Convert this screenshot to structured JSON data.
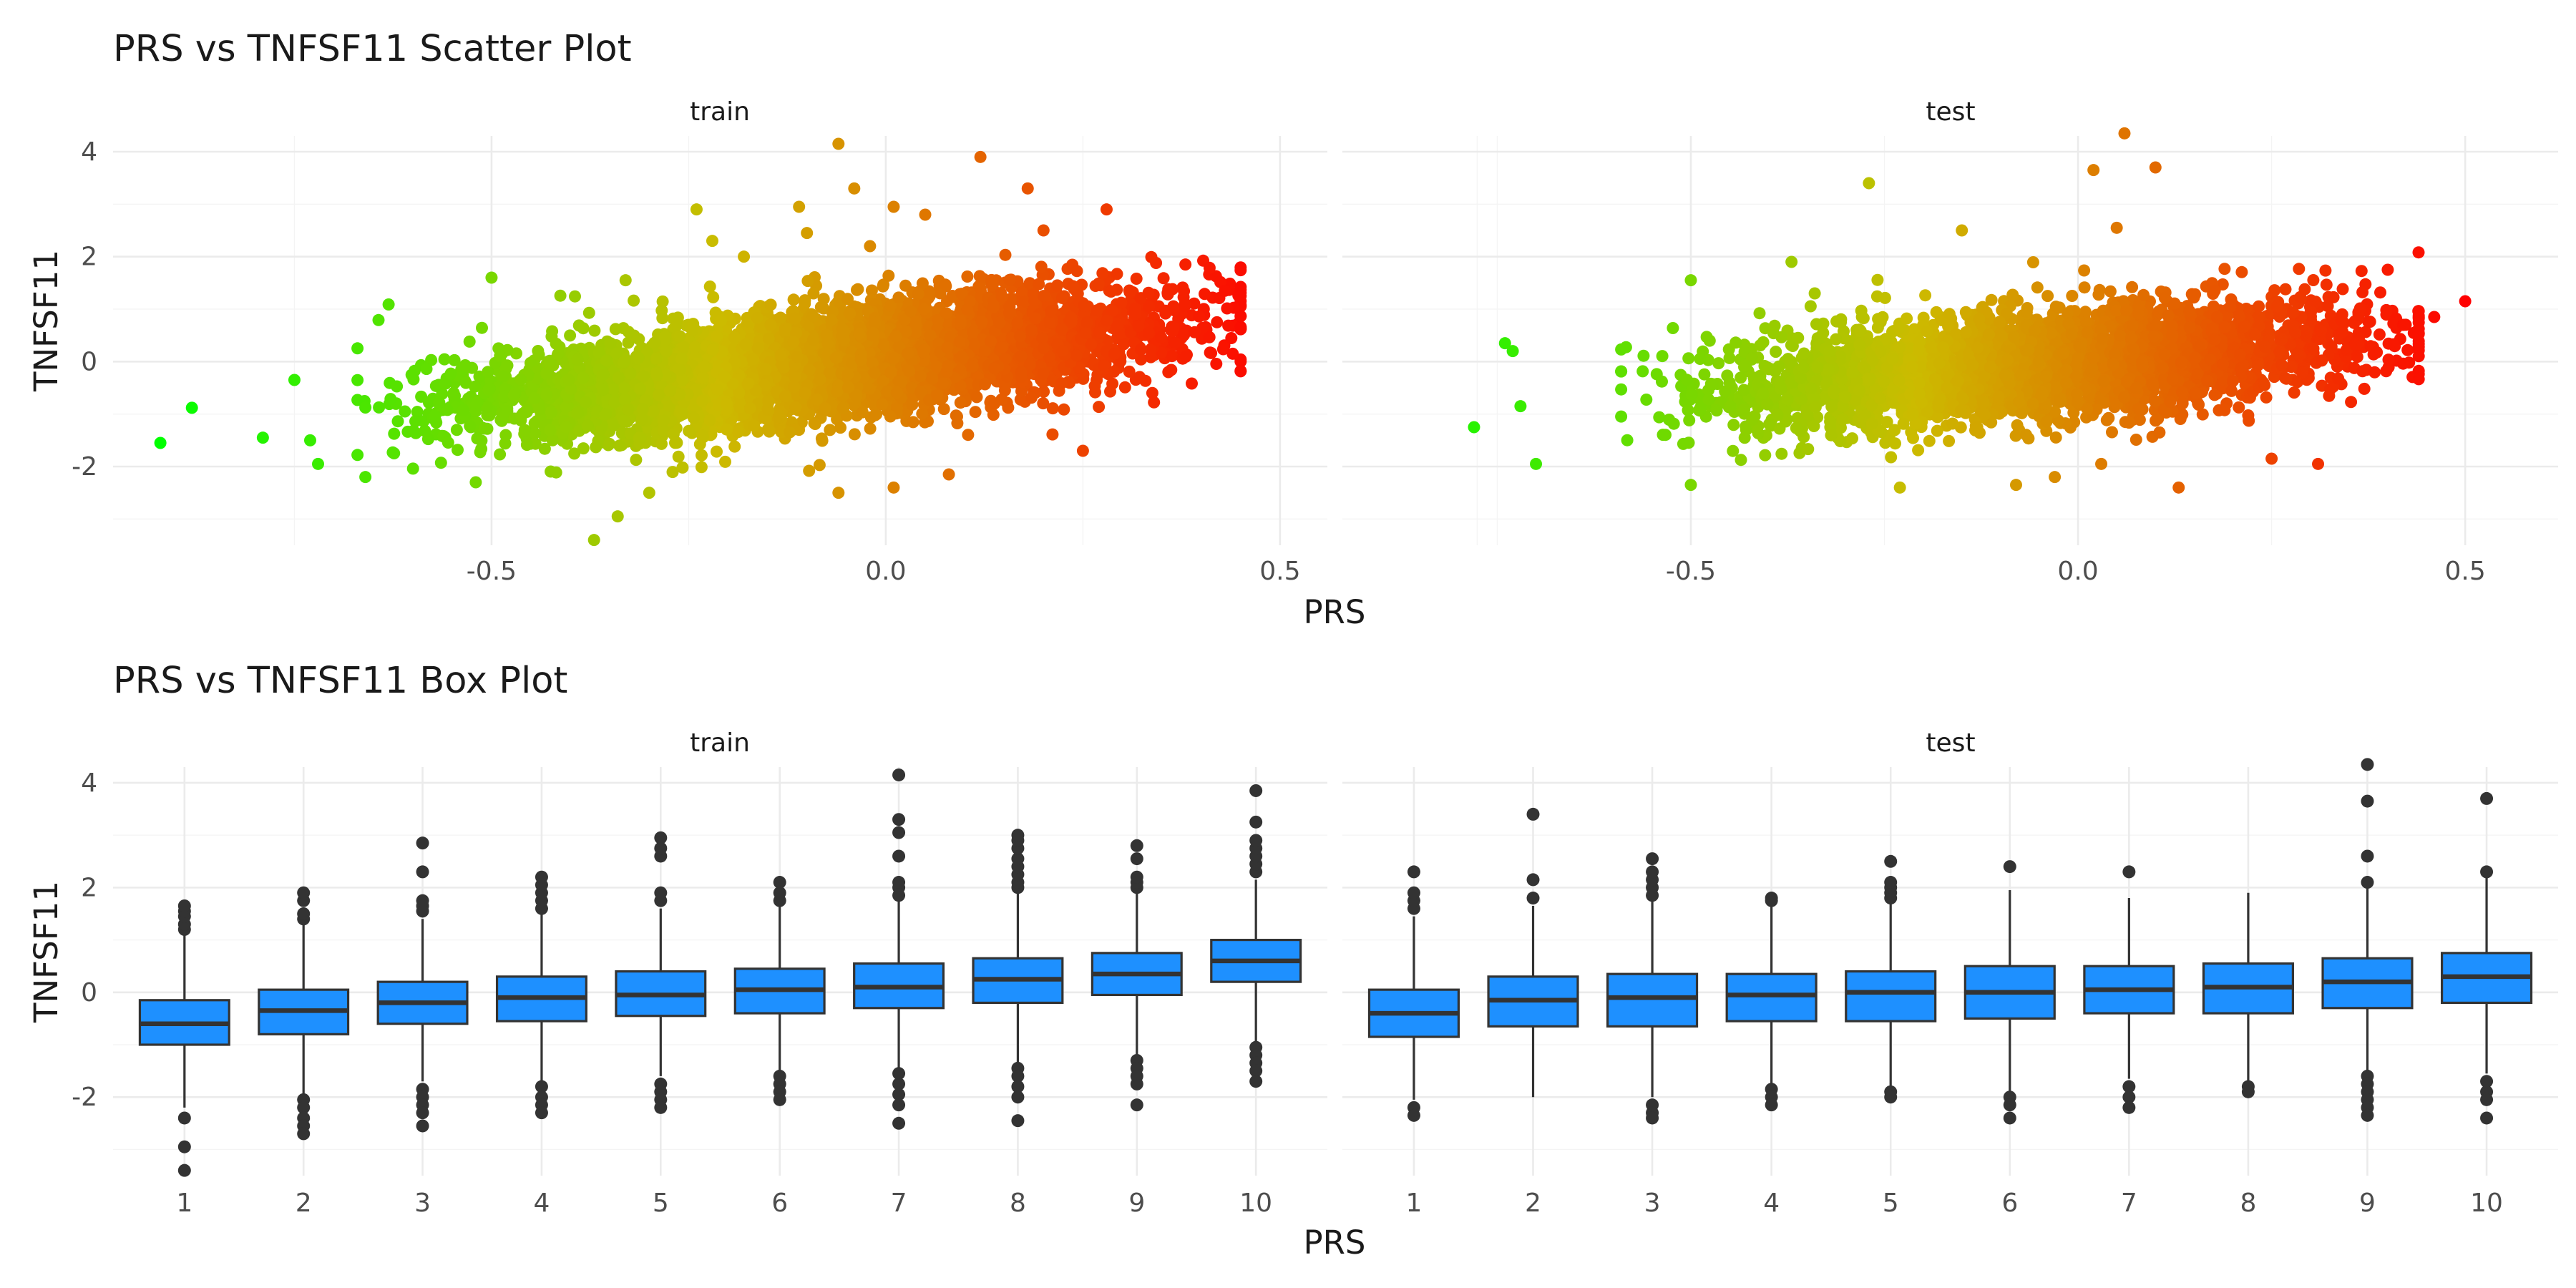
{
  "chart_data": [
    {
      "type": "scatter",
      "title": "PRS vs TNFSF11 Scatter Plot",
      "xlabel": "PRS",
      "ylabel": "TNFSF11",
      "color_scale": {
        "low": "#00FF00",
        "mid": "#CCBB00",
        "high": "#FF0000",
        "mapped_to": "PRS"
      },
      "panels": [
        {
          "name": "train",
          "xlim": [
            -0.98,
            0.56
          ],
          "ylim": [
            -3.5,
            4.3
          ],
          "xticks": [
            "-0.5",
            "0.0",
            "0.5"
          ],
          "yticks": [
            "-2",
            "0",
            "2",
            "4"
          ],
          "core": [
            {
              "x": -0.55,
              "y": -0.85
            },
            {
              "x": -0.4,
              "y": -0.6
            },
            {
              "x": -0.25,
              "y": -0.35
            },
            {
              "x": -0.1,
              "y": -0.05
            },
            {
              "x": 0.05,
              "y": 0.2
            },
            {
              "x": 0.2,
              "y": 0.45
            },
            {
              "x": 0.33,
              "y": 0.7
            }
          ],
          "points": [
            {
              "x": -0.92,
              "y": -1.55
            },
            {
              "x": -0.88,
              "y": -0.88
            },
            {
              "x": -0.79,
              "y": -1.45
            },
            {
              "x": -0.75,
              "y": -0.35
            },
            {
              "x": -0.73,
              "y": -1.5
            },
            {
              "x": -0.72,
              "y": -1.95
            },
            {
              "x": -0.66,
              "y": -2.2
            },
            {
              "x": -0.52,
              "y": -2.3
            },
            {
              "x": -0.5,
              "y": 1.6
            },
            {
              "x": -0.37,
              "y": -3.4
            },
            {
              "x": -0.34,
              "y": -2.95
            },
            {
              "x": -0.33,
              "y": 1.55
            },
            {
              "x": -0.3,
              "y": -2.5
            },
            {
              "x": -0.24,
              "y": 2.9
            },
            {
              "x": -0.22,
              "y": 2.3
            },
            {
              "x": -0.18,
              "y": 2.0
            },
            {
              "x": -0.11,
              "y": 2.95
            },
            {
              "x": -0.1,
              "y": 2.45
            },
            {
              "x": -0.06,
              "y": 4.15
            },
            {
              "x": -0.06,
              "y": -2.5
            },
            {
              "x": -0.04,
              "y": 3.3
            },
            {
              "x": -0.02,
              "y": 2.2
            },
            {
              "x": 0.01,
              "y": 2.95
            },
            {
              "x": 0.01,
              "y": -2.4
            },
            {
              "x": 0.05,
              "y": 2.8
            },
            {
              "x": 0.08,
              "y": -2.15
            },
            {
              "x": 0.12,
              "y": 3.9
            },
            {
              "x": 0.18,
              "y": 3.3
            },
            {
              "x": 0.2,
              "y": 2.5
            },
            {
              "x": 0.25,
              "y": -1.7
            },
            {
              "x": 0.28,
              "y": 2.9
            },
            {
              "x": 0.38,
              "y": 1.85
            },
            {
              "x": 0.42,
              "y": 0.75
            },
            {
              "x": 0.43,
              "y": 1.35
            },
            {
              "x": 0.44,
              "y": 0.15
            },
            {
              "x": 0.45,
              "y": 1.25
            }
          ]
        },
        {
          "name": "test",
          "xlim": [
            -0.95,
            0.62
          ],
          "ylim": [
            -3.5,
            4.3
          ],
          "xticks": [
            "-0.5",
            "0.0",
            "0.5"
          ],
          "yticks": [
            "-2",
            "0",
            "2",
            "4"
          ],
          "core": [
            {
              "x": -0.47,
              "y": -0.55
            },
            {
              "x": -0.33,
              "y": -0.4
            },
            {
              "x": -0.2,
              "y": -0.25
            },
            {
              "x": -0.05,
              "y": -0.05
            },
            {
              "x": 0.1,
              "y": 0.1
            },
            {
              "x": 0.23,
              "y": 0.3
            },
            {
              "x": 0.32,
              "y": 0.45
            }
          ],
          "points": [
            {
              "x": -0.78,
              "y": -1.25
            },
            {
              "x": -0.74,
              "y": 0.35
            },
            {
              "x": -0.73,
              "y": 0.2
            },
            {
              "x": -0.72,
              "y": -0.85
            },
            {
              "x": -0.7,
              "y": -1.95
            },
            {
              "x": -0.5,
              "y": 1.55
            },
            {
              "x": -0.5,
              "y": -2.35
            },
            {
              "x": -0.37,
              "y": 1.9
            },
            {
              "x": -0.34,
              "y": 1.3
            },
            {
              "x": -0.27,
              "y": 3.4
            },
            {
              "x": -0.23,
              "y": -2.4
            },
            {
              "x": -0.15,
              "y": 2.5
            },
            {
              "x": -0.08,
              "y": -2.35
            },
            {
              "x": -0.03,
              "y": -2.2
            },
            {
              "x": 0.02,
              "y": 3.65
            },
            {
              "x": 0.03,
              "y": -1.95
            },
            {
              "x": 0.05,
              "y": 2.55
            },
            {
              "x": 0.06,
              "y": 4.35
            },
            {
              "x": 0.1,
              "y": 3.7
            },
            {
              "x": 0.13,
              "y": -2.4
            },
            {
              "x": 0.25,
              "y": -1.85
            },
            {
              "x": 0.31,
              "y": -1.95
            },
            {
              "x": 0.4,
              "y": 1.75
            },
            {
              "x": 0.42,
              "y": 0.7
            },
            {
              "x": 0.46,
              "y": 0.85
            },
            {
              "x": 0.5,
              "y": 1.15
            }
          ]
        }
      ]
    },
    {
      "type": "box",
      "title": "PRS vs TNFSF11 Box Plot",
      "xlabel": "PRS",
      "ylabel": "TNFSF11",
      "fill": "#1E90FF",
      "outline": "#333333",
      "categories": [
        "1",
        "2",
        "3",
        "4",
        "5",
        "6",
        "7",
        "8",
        "9",
        "10"
      ],
      "yticks": [
        "-2",
        "0",
        "2",
        "4"
      ],
      "ylim": [
        -3.5,
        4.3
      ],
      "panels": [
        {
          "name": "train",
          "boxes": [
            {
              "q1": -1.0,
              "median": -0.6,
              "q3": -0.15,
              "low": -2.2,
              "high": 1.1,
              "outliers": [
                1.2,
                1.3,
                1.45,
                1.55,
                1.65,
                -2.4,
                -2.95,
                -3.4
              ]
            },
            {
              "q1": -0.8,
              "median": -0.35,
              "q3": 0.05,
              "low": -1.95,
              "high": 1.3,
              "outliers": [
                1.4,
                1.5,
                1.75,
                1.9,
                -2.05,
                -2.2,
                -2.4,
                -2.55,
                -2.7
              ]
            },
            {
              "q1": -0.6,
              "median": -0.2,
              "q3": 0.2,
              "low": -1.7,
              "high": 1.4,
              "outliers": [
                1.55,
                1.65,
                1.75,
                2.3,
                2.85,
                -1.85,
                -2.0,
                -2.15,
                -2.3,
                -2.55
              ]
            },
            {
              "q1": -0.55,
              "median": -0.1,
              "q3": 0.3,
              "low": -1.7,
              "high": 1.5,
              "outliers": [
                1.6,
                1.75,
                1.9,
                2.05,
                2.2,
                -1.8,
                -2.0,
                -2.15,
                -2.3
              ]
            },
            {
              "q1": -0.45,
              "median": -0.05,
              "q3": 0.4,
              "low": -1.6,
              "high": 1.6,
              "outliers": [
                1.75,
                1.9,
                2.6,
                2.75,
                2.95,
                -1.75,
                -1.9,
                -2.05,
                -2.2
              ]
            },
            {
              "q1": -0.4,
              "median": 0.05,
              "q3": 0.45,
              "low": -1.5,
              "high": 1.65,
              "outliers": [
                1.75,
                1.9,
                2.1,
                -1.6,
                -1.75,
                -1.9,
                -2.05
              ]
            },
            {
              "q1": -0.3,
              "median": 0.1,
              "q3": 0.55,
              "low": -1.45,
              "high": 1.75,
              "outliers": [
                1.85,
                2.0,
                2.1,
                2.6,
                3.05,
                3.3,
                4.15,
                -1.55,
                -1.75,
                -1.95,
                -2.15,
                -2.5
              ]
            },
            {
              "q1": -0.2,
              "median": 0.25,
              "q3": 0.65,
              "low": -1.35,
              "high": 1.9,
              "outliers": [
                2.0,
                2.1,
                2.25,
                2.4,
                2.55,
                2.75,
                2.9,
                3.0,
                -1.45,
                -1.6,
                -1.8,
                -2.0,
                -2.45
              ]
            },
            {
              "q1": -0.05,
              "median": 0.35,
              "q3": 0.75,
              "low": -1.2,
              "high": 1.9,
              "outliers": [
                2.0,
                2.1,
                2.2,
                2.55,
                2.8,
                -1.3,
                -1.45,
                -1.6,
                -1.75,
                -2.15
              ]
            },
            {
              "q1": 0.2,
              "median": 0.6,
              "q3": 1.0,
              "low": -0.95,
              "high": 2.15,
              "outliers": [
                2.3,
                2.45,
                2.6,
                2.75,
                2.9,
                3.25,
                3.85,
                -1.05,
                -1.2,
                -1.35,
                -1.5,
                -1.7
              ]
            }
          ]
        },
        {
          "name": "test",
          "boxes": [
            {
              "q1": -0.85,
              "median": -0.4,
              "q3": 0.05,
              "low": -2.05,
              "high": 1.45,
              "outliers": [
                1.6,
                1.75,
                1.9,
                2.3,
                -2.2,
                -2.35
              ]
            },
            {
              "q1": -0.65,
              "median": -0.15,
              "q3": 0.3,
              "low": -2.0,
              "high": 1.65,
              "outliers": [
                1.8,
                2.15,
                3.4
              ]
            },
            {
              "q1": -0.65,
              "median": -0.1,
              "q3": 0.35,
              "low": -2.0,
              "high": 1.75,
              "outliers": [
                1.85,
                2.0,
                2.15,
                2.3,
                2.55,
                -2.15,
                -2.3,
                -2.4
              ]
            },
            {
              "q1": -0.55,
              "median": -0.05,
              "q3": 0.35,
              "low": -1.75,
              "high": 1.65,
              "outliers": [
                1.75,
                1.8,
                -1.85,
                -2.0,
                -2.15
              ]
            },
            {
              "q1": -0.55,
              "median": 0.0,
              "q3": 0.4,
              "low": -1.8,
              "high": 1.7,
              "outliers": [
                1.8,
                1.9,
                2.0,
                2.1,
                2.5,
                -1.9,
                -2.0
              ]
            },
            {
              "q1": -0.5,
              "median": 0.0,
              "q3": 0.5,
              "low": -1.9,
              "high": 1.95,
              "outliers": [
                2.4,
                -2.0,
                -2.15,
                -2.4
              ]
            },
            {
              "q1": -0.4,
              "median": 0.05,
              "q3": 0.5,
              "low": -1.65,
              "high": 1.8,
              "outliers": [
                2.3,
                -1.8,
                -2.0,
                -2.2
              ]
            },
            {
              "q1": -0.4,
              "median": 0.1,
              "q3": 0.55,
              "low": -1.75,
              "high": 1.9,
              "outliers": [
                -1.8,
                -1.9
              ]
            },
            {
              "q1": -0.3,
              "median": 0.2,
              "q3": 0.65,
              "low": -1.5,
              "high": 2.0,
              "outliers": [
                2.1,
                2.6,
                3.65,
                4.35,
                -1.6,
                -1.75,
                -1.9,
                -2.05,
                -2.2,
                -2.35
              ]
            },
            {
              "q1": -0.2,
              "median": 0.3,
              "q3": 0.75,
              "low": -1.55,
              "high": 2.2,
              "outliers": [
                2.3,
                3.7,
                -1.7,
                -1.9,
                -2.05,
                -2.4
              ]
            }
          ]
        }
      ]
    }
  ]
}
